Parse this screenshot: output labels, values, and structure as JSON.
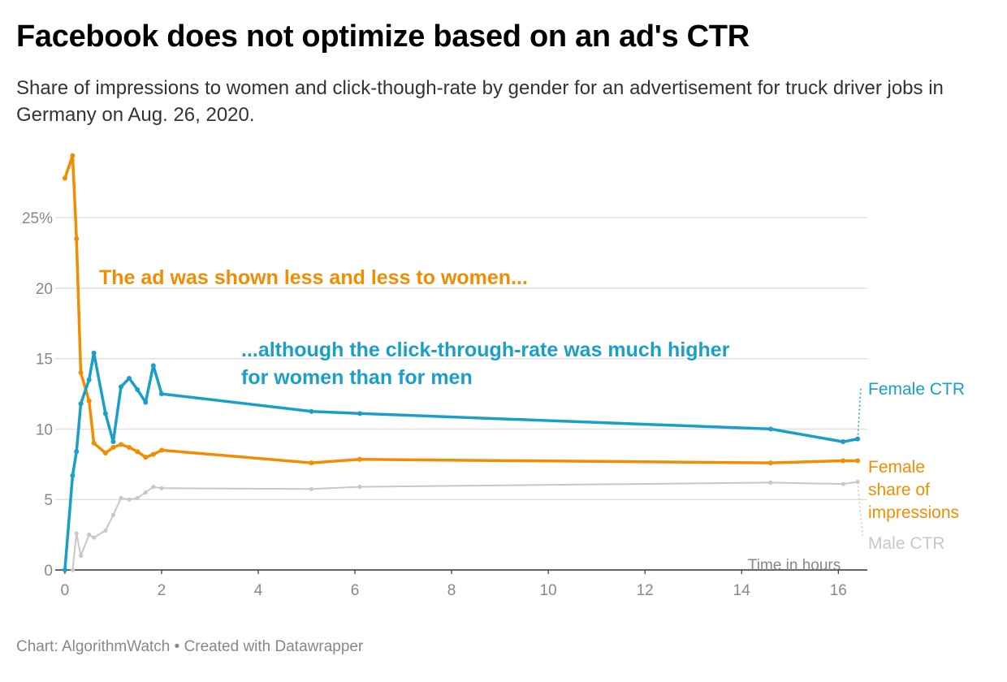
{
  "header": {
    "title": "Facebook does not optimize based on an ad's CTR",
    "subtitle": "Share of impressions to women and click-though-rate by gender for an advertisement for truck driver jobs in Germany on Aug. 26, 2020."
  },
  "footer": {
    "credit": "Chart: AlgorithmWatch • Created with Datawrapper"
  },
  "annotations": {
    "women_shown_less": "The ad was shown less and less to women...",
    "ctr_higher_line1": "...although the click-through-rate was much higher",
    "ctr_higher_line2": "for women than for men"
  },
  "colors": {
    "female_ctr": "#1a9fc9",
    "female_share": "#f28c00",
    "male_ctr": "#c8c8c8",
    "grid": "#e0e0e0",
    "axis": "#333333"
  },
  "chart_data": {
    "type": "line",
    "title": "Facebook does not optimize based on an ad's CTR",
    "xlabel": "Time in hours",
    "ylabel": "",
    "xlim": [
      -0.2,
      16.6
    ],
    "ylim": [
      0,
      29.5
    ],
    "x_ticks": [
      0,
      2,
      4,
      6,
      8,
      10,
      12,
      14,
      16
    ],
    "x_tick_labels": [
      "0",
      "2",
      "4",
      "6",
      "8",
      "10",
      "12",
      "14",
      "16"
    ],
    "y_ticks": [
      0,
      5,
      10,
      15,
      20,
      25
    ],
    "y_tick_labels": [
      "0",
      "5",
      "10",
      "15",
      "20",
      "25%"
    ],
    "grid": true,
    "legend": "inline labels at right end",
    "series": [
      {
        "name": "Female share of impressions",
        "label_lines": [
          "Female",
          "share of",
          "impressions"
        ],
        "color": "#f28c00",
        "line_width": 3.5,
        "x": [
          0.0,
          0.16,
          0.24,
          0.33,
          0.5,
          0.6,
          0.84,
          1.0,
          1.16,
          1.33,
          1.5,
          1.67,
          1.83,
          2.0,
          5.1,
          6.1,
          14.6,
          16.1,
          16.4
        ],
        "y": [
          27.8,
          29.4,
          23.5,
          14.0,
          12.0,
          9.0,
          8.3,
          8.7,
          8.9,
          8.7,
          8.4,
          8.0,
          8.2,
          8.5,
          7.6,
          7.85,
          7.6,
          7.75,
          7.75
        ]
      },
      {
        "name": "Female CTR",
        "label_lines": [
          "Female CTR"
        ],
        "color": "#1a9fc9",
        "line_width": 3.5,
        "x": [
          0.0,
          0.16,
          0.24,
          0.33,
          0.5,
          0.6,
          0.84,
          1.0,
          1.16,
          1.33,
          1.5,
          1.67,
          1.83,
          2.0,
          5.1,
          6.1,
          14.6,
          16.1,
          16.4
        ],
        "y": [
          0.0,
          6.7,
          8.4,
          11.8,
          13.5,
          15.4,
          11.1,
          9.1,
          13.0,
          13.6,
          12.8,
          11.9,
          14.5,
          12.5,
          11.25,
          11.1,
          10.0,
          9.1,
          9.3
        ]
      },
      {
        "name": "Male CTR",
        "label_lines": [
          "Male CTR"
        ],
        "color": "#c8c8c8",
        "line_width": 2,
        "x": [
          0.16,
          0.24,
          0.33,
          0.5,
          0.6,
          0.84,
          1.0,
          1.16,
          1.33,
          1.5,
          1.67,
          1.83,
          2.0,
          5.1,
          6.1,
          14.6,
          16.1,
          16.4
        ],
        "y": [
          0.0,
          2.6,
          1.0,
          2.5,
          2.3,
          2.8,
          3.9,
          5.1,
          5.0,
          5.1,
          5.5,
          5.9,
          5.8,
          5.75,
          5.9,
          6.2,
          6.1,
          6.25
        ]
      }
    ]
  }
}
